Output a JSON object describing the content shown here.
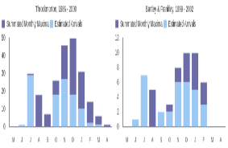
{
  "chart_data": [
    {
      "type": "bar",
      "title": "Throckmorton, 1986 - 2000",
      "categories": [
        "M",
        "J",
        "J",
        "A",
        "S",
        "O",
        "N",
        "D",
        "J",
        "F",
        "M",
        "A"
      ],
      "series": [
        {
          "name": "Estimated Arrivals",
          "color": "#9cc8f4",
          "values": [
            0,
            1,
            29,
            0,
            0,
            18,
            27,
            18,
            10,
            2,
            1,
            0
          ]
        },
        {
          "name": "Summated Monthly Maxima",
          "color": "#6b6ba8",
          "values": [
            0,
            0,
            1,
            18,
            7,
            8,
            19,
            32,
            21,
            12,
            5,
            1
          ]
        }
      ],
      "ylim": [
        0,
        50
      ],
      "yticks": [
        0,
        10,
        20,
        30,
        40,
        50
      ],
      "stacked": true,
      "grid": false,
      "legend": "upper left"
    },
    {
      "type": "bar",
      "title": "Bartley & Frankley, 1999 - 2002",
      "categories": [
        "M",
        "J",
        "J",
        "A",
        "S",
        "O",
        "N",
        "D",
        "J",
        "F",
        "M",
        "A"
      ],
      "series": [
        {
          "name": "Estimated Arrivals",
          "color": "#9cc8f4",
          "values": [
            0,
            1,
            7,
            0,
            2,
            2,
            6,
            6,
            5,
            3,
            0,
            0
          ]
        },
        {
          "name": "Summated Monthly Maxima",
          "color": "#6b6ba8",
          "values": [
            0,
            0,
            0,
            5,
            0,
            1,
            2,
            4,
            5,
            3,
            0,
            0
          ]
        }
      ],
      "ylim": [
        0,
        12
      ],
      "yticks": [
        0,
        2,
        4,
        6,
        8,
        10,
        12
      ],
      "stacked": true,
      "grid": false,
      "legend": "upper left"
    }
  ]
}
